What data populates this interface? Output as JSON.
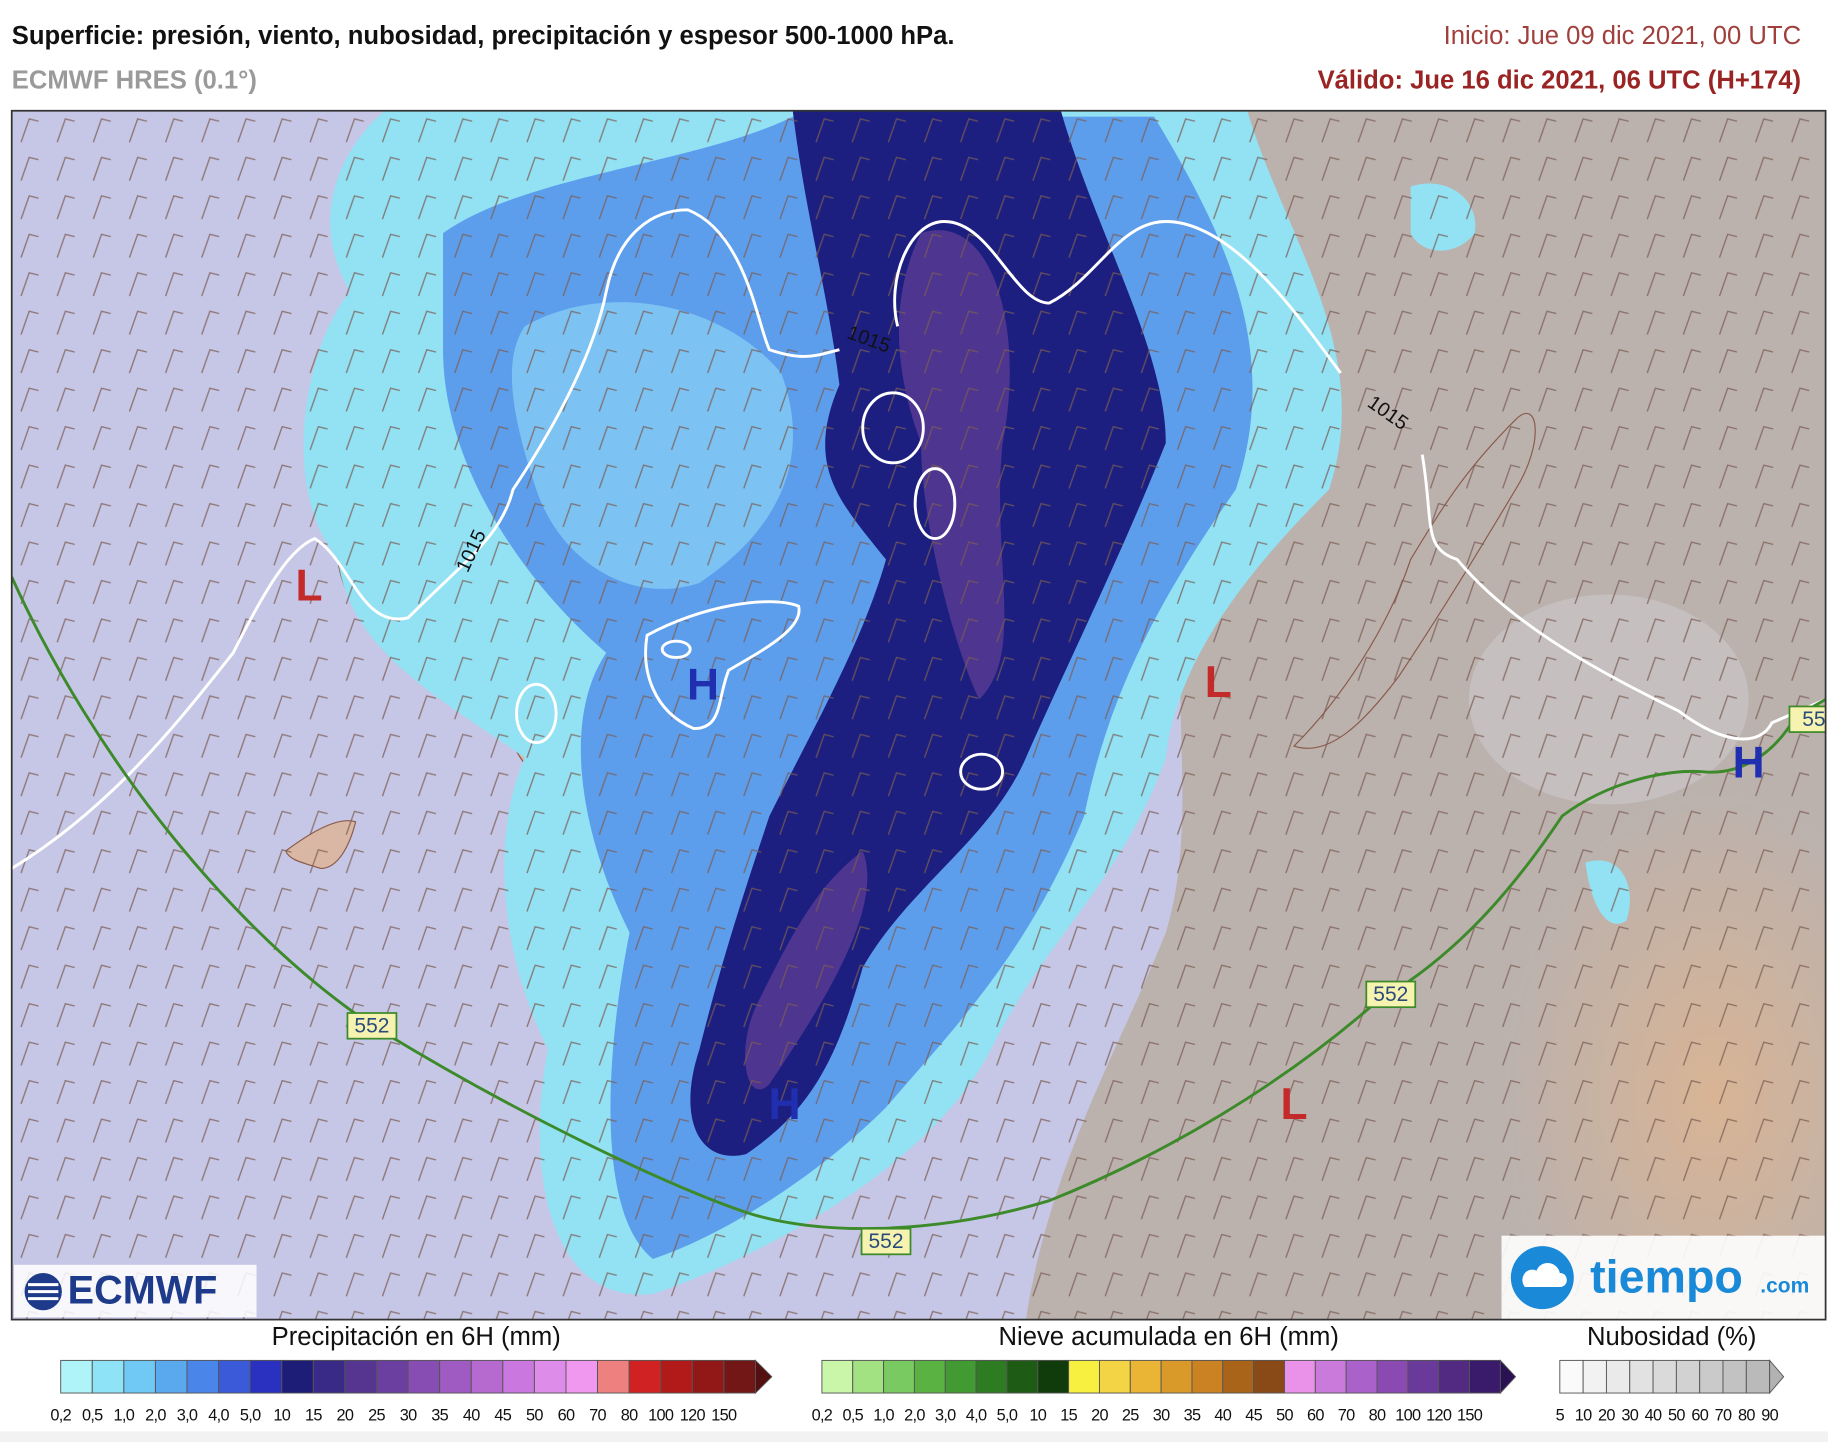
{
  "header": {
    "title": "Superficie: presión, viento, nubosidad, precipitación y espesor 500-1000 hPa.",
    "model": "ECMWF HRES (0.1°)",
    "run": "Inicio: Jue 09 dic 2021, 00 UTC",
    "valid": "Válido: Jue 16 dic 2021, 06 UTC (H+174)"
  },
  "map": {
    "isobar_labels": [
      "1015",
      "1015",
      "1015"
    ],
    "thickness_labels": [
      "552",
      "552",
      "552",
      "55"
    ],
    "pressure_centers": [
      {
        "label": "L",
        "color": "#c42a2a"
      },
      {
        "label": "H",
        "color": "#1f2fb0"
      },
      {
        "label": "L",
        "color": "#c42a2a"
      },
      {
        "label": "H",
        "color": "#1f2fb0"
      },
      {
        "label": "H",
        "color": "#1f2fb0"
      },
      {
        "label": "L",
        "color": "#c42a2a"
      }
    ]
  },
  "logos": {
    "ecmwf": "ECMWF",
    "tiempo": "tiempo",
    "tiempo_suffix": ".com"
  },
  "legends": [
    {
      "title": "Precipitación en 6H (mm)",
      "labels": [
        "0,2",
        "0,5",
        "1,0",
        "2,0",
        "3,0",
        "4,0",
        "5,0",
        "10",
        "15",
        "20",
        "25",
        "30",
        "35",
        "40",
        "45",
        "50",
        "60",
        "70",
        "80",
        "100",
        "120",
        "150"
      ],
      "colors": [
        "#aef4f8",
        "#8ee3f6",
        "#70c9f4",
        "#5aa8ee",
        "#4a86ea",
        "#3a5ada",
        "#2a30c0",
        "#1d1d78",
        "#3a2a88",
        "#55358f",
        "#6a3f9f",
        "#884db3",
        "#a05bc3",
        "#b669cf",
        "#ca78df",
        "#de8ce9",
        "#f098f0",
        "#ef8080",
        "#d02222",
        "#b21a1a",
        "#921818",
        "#721616",
        "#521010"
      ]
    },
    {
      "title": "Nieve acumulada en 6H (mm)",
      "labels": [
        "0,2",
        "0,5",
        "1,0",
        "2,0",
        "3,0",
        "4,0",
        "5,0",
        "10",
        "15",
        "20",
        "25",
        "30",
        "35",
        "40",
        "45",
        "50",
        "60",
        "70",
        "80",
        "100",
        "120",
        "150"
      ],
      "colors": [
        "#caf6aa",
        "#a2e282",
        "#7aca62",
        "#5ab242",
        "#429a32",
        "#2e7c22",
        "#1e5c16",
        "#0f3c0a",
        "#f8f040",
        "#f2d444",
        "#eab434",
        "#da9a2a",
        "#ca8222",
        "#aa641a",
        "#8a4a18",
        "#ea92ea",
        "#ca7ada",
        "#aa62ca",
        "#8a4ab2",
        "#6a3a9a",
        "#522a82",
        "#3a1a6a",
        "#2a1252"
      ]
    },
    {
      "title": "Nubosidad (%)",
      "labels": [
        "5",
        "10",
        "20",
        "30",
        "40",
        "50",
        "60",
        "70",
        "80",
        "90"
      ],
      "colors": [
        "#fafafa",
        "#f2f2f2",
        "#eaeaea",
        "#e2e2e2",
        "#dadada",
        "#d2d2d2",
        "#cacaca",
        "#c2c2c2",
        "#bababa",
        "#b2b2b2"
      ]
    }
  ]
}
